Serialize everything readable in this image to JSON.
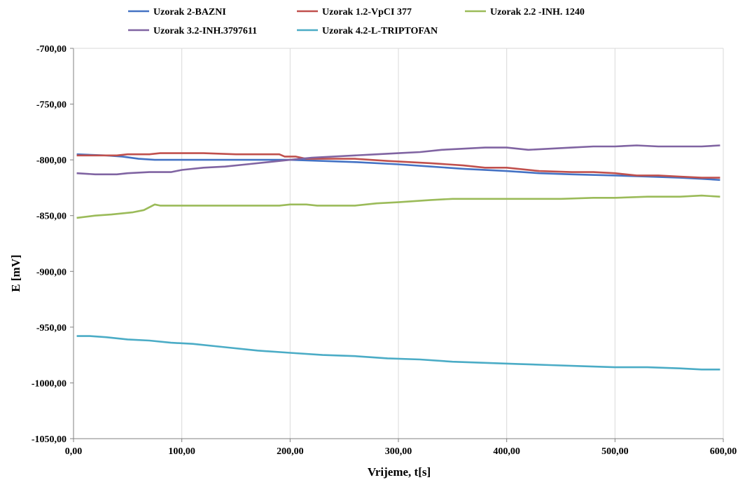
{
  "chart_data": {
    "type": "line",
    "title": "",
    "xlabel": "Vrijeme, t[s]",
    "ylabel": "E [mV]",
    "xlim": [
      0,
      600
    ],
    "ylim": [
      -1050,
      -700
    ],
    "x_ticks": [
      0,
      100,
      200,
      300,
      400,
      500,
      600
    ],
    "y_ticks": [
      -700,
      -750,
      -800,
      -850,
      -900,
      -950,
      -1000,
      -1050
    ],
    "x_tick_labels": [
      "0,00",
      "100,00",
      "200,00",
      "300,00",
      "400,00",
      "500,00",
      "600,00"
    ],
    "y_tick_labels": [
      "-700,00",
      "-750,00",
      "-800,00",
      "-850,00",
      "-900,00",
      "-950,00",
      "-1000,00",
      "-1050,00"
    ],
    "grid": "vertical",
    "legend_position": "top",
    "series": [
      {
        "name": "Uzorak 2-BAZNI",
        "color": "#4472c4",
        "points": [
          [
            3,
            -795
          ],
          [
            30,
            -796
          ],
          [
            45,
            -797
          ],
          [
            60,
            -799
          ],
          [
            75,
            -800
          ],
          [
            100,
            -800
          ],
          [
            150,
            -800
          ],
          [
            200,
            -800
          ],
          [
            230,
            -801
          ],
          [
            260,
            -802
          ],
          [
            300,
            -804
          ],
          [
            330,
            -806
          ],
          [
            360,
            -808
          ],
          [
            400,
            -810
          ],
          [
            430,
            -812
          ],
          [
            460,
            -813
          ],
          [
            500,
            -814
          ],
          [
            530,
            -815
          ],
          [
            560,
            -816
          ],
          [
            580,
            -817
          ],
          [
            597,
            -818
          ]
        ]
      },
      {
        "name": "Uzorak 1.2-VpCI 377",
        "color": "#c0504d",
        "points": [
          [
            3,
            -796
          ],
          [
            40,
            -796
          ],
          [
            50,
            -795
          ],
          [
            70,
            -795
          ],
          [
            80,
            -794
          ],
          [
            100,
            -794
          ],
          [
            120,
            -794
          ],
          [
            150,
            -795
          ],
          [
            190,
            -795
          ],
          [
            195,
            -797
          ],
          [
            205,
            -797
          ],
          [
            215,
            -799
          ],
          [
            230,
            -799
          ],
          [
            260,
            -799
          ],
          [
            290,
            -801
          ],
          [
            310,
            -802
          ],
          [
            330,
            -803
          ],
          [
            360,
            -805
          ],
          [
            380,
            -807
          ],
          [
            400,
            -807
          ],
          [
            430,
            -810
          ],
          [
            460,
            -811
          ],
          [
            480,
            -811
          ],
          [
            500,
            -812
          ],
          [
            520,
            -814
          ],
          [
            540,
            -814
          ],
          [
            560,
            -815
          ],
          [
            580,
            -816
          ],
          [
            597,
            -816
          ]
        ]
      },
      {
        "name": "Uzorak 2.2 -INH. 1240",
        "color": "#9bbb59",
        "points": [
          [
            3,
            -852
          ],
          [
            20,
            -850
          ],
          [
            35,
            -849
          ],
          [
            55,
            -847
          ],
          [
            65,
            -845
          ],
          [
            75,
            -840
          ],
          [
            80,
            -841
          ],
          [
            100,
            -841
          ],
          [
            150,
            -841
          ],
          [
            190,
            -841
          ],
          [
            200,
            -840
          ],
          [
            215,
            -840
          ],
          [
            225,
            -841
          ],
          [
            260,
            -841
          ],
          [
            280,
            -839
          ],
          [
            300,
            -838
          ],
          [
            330,
            -836
          ],
          [
            350,
            -835
          ],
          [
            400,
            -835
          ],
          [
            450,
            -835
          ],
          [
            480,
            -834
          ],
          [
            500,
            -834
          ],
          [
            530,
            -833
          ],
          [
            560,
            -833
          ],
          [
            580,
            -832
          ],
          [
            597,
            -833
          ]
        ]
      },
      {
        "name": "Uzorak 3.2-INH.3797611",
        "color": "#8064a2",
        "points": [
          [
            3,
            -812
          ],
          [
            20,
            -813
          ],
          [
            40,
            -813
          ],
          [
            50,
            -812
          ],
          [
            70,
            -811
          ],
          [
            90,
            -811
          ],
          [
            100,
            -809
          ],
          [
            120,
            -807
          ],
          [
            140,
            -806
          ],
          [
            160,
            -804
          ],
          [
            180,
            -802
          ],
          [
            200,
            -800
          ],
          [
            220,
            -798
          ],
          [
            240,
            -797
          ],
          [
            260,
            -796
          ],
          [
            280,
            -795
          ],
          [
            300,
            -794
          ],
          [
            320,
            -793
          ],
          [
            340,
            -791
          ],
          [
            360,
            -790
          ],
          [
            380,
            -789
          ],
          [
            400,
            -789
          ],
          [
            420,
            -791
          ],
          [
            440,
            -790
          ],
          [
            460,
            -789
          ],
          [
            480,
            -788
          ],
          [
            500,
            -788
          ],
          [
            520,
            -787
          ],
          [
            540,
            -788
          ],
          [
            560,
            -788
          ],
          [
            580,
            -788
          ],
          [
            597,
            -787
          ]
        ]
      },
      {
        "name": "Uzorak 4.2-L-TRIPTOFAN",
        "color": "#4bacc6",
        "points": [
          [
            3,
            -958
          ],
          [
            15,
            -958
          ],
          [
            30,
            -959
          ],
          [
            50,
            -961
          ],
          [
            70,
            -962
          ],
          [
            90,
            -964
          ],
          [
            110,
            -965
          ],
          [
            140,
            -968
          ],
          [
            170,
            -971
          ],
          [
            200,
            -973
          ],
          [
            230,
            -975
          ],
          [
            260,
            -976
          ],
          [
            290,
            -978
          ],
          [
            320,
            -979
          ],
          [
            350,
            -981
          ],
          [
            380,
            -982
          ],
          [
            410,
            -983
          ],
          [
            440,
            -984
          ],
          [
            470,
            -985
          ],
          [
            500,
            -986
          ],
          [
            530,
            -986
          ],
          [
            560,
            -987
          ],
          [
            580,
            -988
          ],
          [
            597,
            -988
          ]
        ]
      }
    ]
  }
}
